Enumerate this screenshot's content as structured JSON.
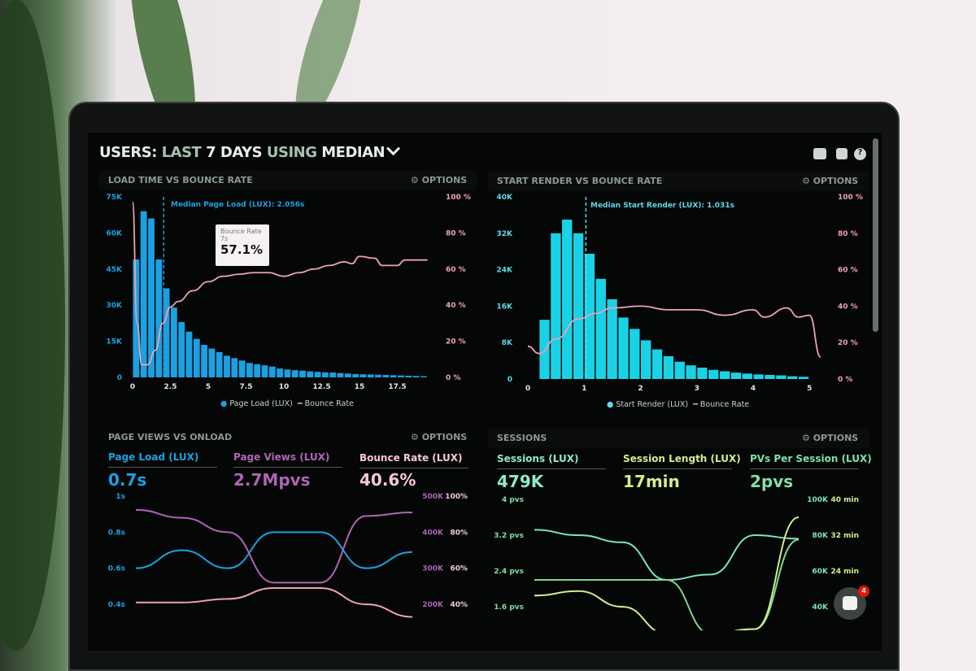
{
  "header": {
    "title_users": "USERS:",
    "title_last": "LAST",
    "title_7days": "7 DAYS",
    "title_using": "USING",
    "title_median": "MEDIAN",
    "icons": [
      "monitor-icon",
      "share-icon",
      "help-icon"
    ]
  },
  "notifications": {
    "count": "4"
  },
  "colors": {
    "blue": "#1ba0e2",
    "cyan": "#19d2e6",
    "pink": "#f0a0b4",
    "purple": "#b064b4",
    "mint": "#7fe0c8",
    "lime": "#d4ec8c",
    "green": "#7fd88c"
  },
  "panels": {
    "load_time": {
      "title": "LOAD TIME VS BOUNCE RATE",
      "options": "OPTIONS",
      "median_label": "Median Page Load (LUX): 2.056s",
      "tooltip": {
        "title": "Bounce Rate",
        "sub": "7s",
        "value": "57.1%"
      },
      "legend": [
        "Page Load (LUX)",
        "Bounce Rate"
      ]
    },
    "start_render": {
      "title": "START RENDER VS BOUNCE RATE",
      "options": "OPTIONS",
      "median_label": "Median Start Render (LUX): 1.031s",
      "legend": [
        "Start Render (LUX)",
        "Bounce Rate"
      ]
    },
    "page_views": {
      "title": "PAGE VIEWS VS ONLOAD",
      "options": "OPTIONS",
      "kpis": [
        {
          "label": "Page Load (LUX)",
          "value": "0.7s"
        },
        {
          "label": "Page Views (LUX)",
          "value": "2.7Mpvs"
        },
        {
          "label": "Bounce Rate (LUX)",
          "value": "40.6%"
        }
      ]
    },
    "sessions": {
      "title": "SESSIONS",
      "options": "OPTIONS",
      "kpis": [
        {
          "label": "Sessions (LUX)",
          "value": "479K"
        },
        {
          "label": "Session Length (LUX)",
          "value": "17min"
        },
        {
          "label": "PVs Per Session (LUX)",
          "value": "2pvs"
        }
      ]
    }
  },
  "chart_data": [
    {
      "type": "bar",
      "title": "LOAD TIME VS BOUNCE RATE",
      "xlim": [
        0,
        20
      ],
      "ylim": [
        0,
        75000
      ],
      "y2lim": [
        0,
        100
      ],
      "xticks": [
        "0",
        "2.5",
        "5",
        "7.5",
        "10",
        "12.5",
        "15",
        "17.5"
      ],
      "yticks": [
        "0",
        "15K",
        "30K",
        "45K",
        "60K",
        "75K"
      ],
      "y2ticks": [
        "0 %",
        "20 %",
        "40 %",
        "60 %",
        "80 %",
        "100 %"
      ],
      "median_x": 2.056,
      "bin_width": 0.5,
      "series": [
        {
          "name": "Page Load (LUX)",
          "x_start": 0,
          "values": [
            49000,
            69000,
            66000,
            49000,
            37000,
            29000,
            23000,
            19000,
            16000,
            13500,
            12000,
            10500,
            9000,
            8000,
            7000,
            6000,
            5500,
            5000,
            4500,
            3700,
            3300,
            3000,
            2800,
            2500,
            2300,
            2100,
            2000,
            1800,
            1600,
            1400,
            1300,
            1200,
            1100,
            1000,
            900,
            800,
            700,
            600,
            500
          ]
        },
        {
          "name": "Bounce Rate",
          "type": "line",
          "axis": "y2",
          "points": [
            [
              0,
              97
            ],
            [
              0.3,
              30
            ],
            [
              0.6,
              7
            ],
            [
              1,
              7
            ],
            [
              1.5,
              15
            ],
            [
              2,
              30
            ],
            [
              2.5,
              39
            ],
            [
              3,
              42
            ],
            [
              4,
              48
            ],
            [
              5,
              53
            ],
            [
              6,
              56
            ],
            [
              7,
              57.1
            ],
            [
              8,
              58
            ],
            [
              9,
              58
            ],
            [
              10,
              56
            ],
            [
              11,
              58
            ],
            [
              12,
              60
            ],
            [
              13,
              62
            ],
            [
              14,
              64
            ],
            [
              14.5,
              63
            ],
            [
              15,
              67
            ],
            [
              16,
              66
            ],
            [
              16.5,
              62
            ],
            [
              17.5,
              62
            ],
            [
              18,
              65
            ],
            [
              19.5,
              65
            ]
          ]
        }
      ]
    },
    {
      "type": "bar",
      "title": "START RENDER VS BOUNCE RATE",
      "xlim": [
        0,
        5.3
      ],
      "ylim": [
        0,
        40000
      ],
      "y2lim": [
        0,
        100
      ],
      "xticks": [
        "0",
        "1",
        "2",
        "3",
        "4",
        "5"
      ],
      "yticks": [
        "0",
        "8K",
        "16K",
        "24K",
        "32K",
        "40K"
      ],
      "y2ticks": [
        "0 %",
        "20 %",
        "40 %",
        "60 %",
        "80 %",
        "100 %"
      ],
      "median_x": 1.031,
      "bin_width": 0.2,
      "series": [
        {
          "name": "Start Render (LUX)",
          "x_start": 0.2,
          "values": [
            13000,
            32000,
            35000,
            32000,
            27500,
            22000,
            17500,
            13500,
            11000,
            8500,
            6500,
            5000,
            3800,
            3000,
            2500,
            2000,
            1700,
            1400,
            1200,
            1000,
            900,
            800,
            600,
            500
          ]
        },
        {
          "name": "Bounce Rate",
          "type": "line",
          "axis": "y2",
          "points": [
            [
              0,
              18
            ],
            [
              0.2,
              14
            ],
            [
              0.5,
              22
            ],
            [
              0.9,
              33
            ],
            [
              1.2,
              36
            ],
            [
              1.5,
              39
            ],
            [
              2,
              40
            ],
            [
              2.5,
              38
            ],
            [
              3,
              38
            ],
            [
              3.5,
              35
            ],
            [
              4,
              38
            ],
            [
              4.2,
              34
            ],
            [
              4.6,
              39
            ],
            [
              4.8,
              34
            ],
            [
              5,
              35
            ],
            [
              5.2,
              12
            ]
          ]
        }
      ]
    },
    {
      "type": "line",
      "title": "PAGE VIEWS VS ONLOAD",
      "ylim": [
        0.4,
        1
      ],
      "y2lim": [
        200000,
        500000
      ],
      "y3lim": [
        40,
        100
      ],
      "yticks": [
        "0.4s",
        "0.6s",
        "0.8s",
        "1s"
      ],
      "y2ticks": [
        "200K",
        "300K",
        "400K",
        "500K"
      ],
      "y3ticks": [
        "40%",
        "60%",
        "80%",
        "100%"
      ],
      "series": [
        {
          "name": "Page Load (LUX)",
          "axis": "y",
          "values": [
            0.6,
            0.7,
            0.6,
            0.8,
            0.8,
            0.6,
            0.69
          ]
        },
        {
          "name": "Page Views (LUX)",
          "axis": "y2",
          "values": [
            462000,
            440000,
            400000,
            260000,
            260000,
            445000,
            455000
          ]
        },
        {
          "name": "Bounce Rate (LUX)",
          "axis": "y3",
          "values": [
            41,
            41,
            43,
            49,
            49,
            40,
            33
          ]
        }
      ]
    },
    {
      "type": "line",
      "title": "SESSIONS",
      "ylim": [
        1.6,
        4
      ],
      "y2lim": [
        40000,
        100000
      ],
      "y3lim": [
        16,
        40
      ],
      "yticks": [
        "1.6 pvs",
        "2.4 pvs",
        "3.2 pvs",
        "4 pvs"
      ],
      "y2ticks": [
        "40K",
        "60K",
        "80K",
        "100K"
      ],
      "y3ticks": [
        "24 min",
        "32 min",
        "40 min"
      ],
      "series": [
        {
          "name": "Sessions (LUX)",
          "axis": "y2",
          "values": [
            83000,
            80000,
            76000,
            55000,
            58000,
            80000,
            78000
          ]
        },
        {
          "name": "PVs Per Session (LUX)",
          "axis": "y",
          "values": [
            2.2,
            2.2,
            2.2,
            2.2,
            1.0,
            1.1,
            3.1
          ]
        },
        {
          "name": "Session Length (LUX)",
          "axis": "y3",
          "values": [
            18.5,
            19.5,
            16,
            10,
            10,
            11,
            36
          ]
        }
      ]
    }
  ]
}
